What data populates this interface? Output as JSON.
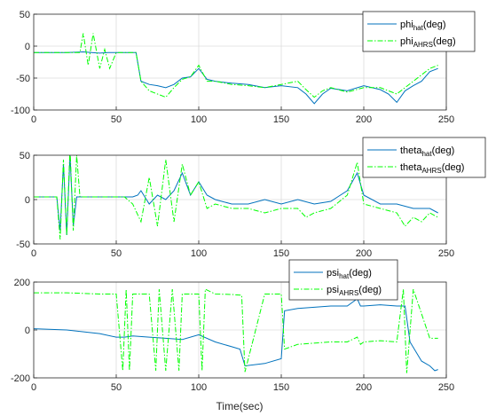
{
  "figure": {
    "xlabel": "Time(sec)"
  },
  "colors": {
    "hat": "#0072BD",
    "ahrs": "#00FF00",
    "axis": "#262626",
    "grid": "#dcdcdc"
  },
  "chart_data": [
    {
      "type": "line",
      "xlim": [
        0,
        250
      ],
      "ylim": [
        -100,
        50
      ],
      "xticks": [
        0,
        50,
        100,
        150,
        200,
        250
      ],
      "yticks": [
        -100,
        -50,
        0,
        50
      ],
      "grid": true,
      "legend_position": "top-right",
      "series": [
        {
          "name": "phi_hat(deg)",
          "label_main": "phi",
          "label_sub": "hat",
          "label_tail": "(deg)",
          "color": "#0072BD",
          "style": "solid",
          "x": [
            0,
            10,
            20,
            30,
            35,
            40,
            45,
            50,
            55,
            62,
            65,
            70,
            75,
            80,
            85,
            90,
            95,
            100,
            105,
            110,
            120,
            130,
            140,
            150,
            160,
            165,
            170,
            175,
            180,
            190,
            200,
            210,
            215,
            220,
            225,
            230,
            235,
            240,
            245
          ],
          "y": [
            -10,
            -10,
            -10,
            -9,
            -10,
            -11,
            -10,
            -10,
            -10,
            -10,
            -55,
            -60,
            -62,
            -65,
            -60,
            -50,
            -48,
            -35,
            -52,
            -55,
            -58,
            -60,
            -65,
            -62,
            -65,
            -75,
            -90,
            -75,
            -66,
            -70,
            -62,
            -68,
            -75,
            -88,
            -70,
            -62,
            -55,
            -40,
            -35
          ]
        },
        {
          "name": "phi_AHRS(deg)",
          "label_main": "phi",
          "label_sub": "AHRS",
          "label_tail": "(deg)",
          "color": "#00FF00",
          "style": "dashdot",
          "x": [
            0,
            10,
            20,
            28,
            30,
            33,
            36,
            40,
            43,
            46,
            50,
            55,
            62,
            65,
            70,
            75,
            80,
            85,
            90,
            95,
            100,
            105,
            110,
            120,
            130,
            140,
            150,
            160,
            165,
            170,
            175,
            180,
            190,
            200,
            210,
            215,
            220,
            225,
            230,
            235,
            240,
            245
          ],
          "y": [
            -10,
            -10,
            -10,
            -10,
            20,
            -30,
            20,
            -35,
            -5,
            -35,
            -10,
            -10,
            -10,
            -55,
            -70,
            -75,
            -80,
            -65,
            -52,
            -48,
            -30,
            -55,
            -55,
            -60,
            -62,
            -65,
            -60,
            -55,
            -68,
            -80,
            -70,
            -65,
            -72,
            -65,
            -65,
            -70,
            -75,
            -65,
            -55,
            -45,
            -35,
            -30
          ]
        }
      ]
    },
    {
      "type": "line",
      "xlim": [
        0,
        250
      ],
      "ylim": [
        -50,
        50
      ],
      "xticks": [
        0,
        50,
        100,
        150,
        200,
        250
      ],
      "yticks": [
        -50,
        0,
        50
      ],
      "grid": true,
      "legend_position": "top-right",
      "series": [
        {
          "name": "theta_hat(deg)",
          "label_main": "theta",
          "label_sub": "hat",
          "label_tail": "(deg)",
          "color": "#0072BD",
          "style": "solid",
          "x": [
            0,
            10,
            14,
            16,
            18,
            20,
            22,
            24,
            26,
            30,
            40,
            50,
            55,
            60,
            63,
            65,
            70,
            75,
            80,
            85,
            90,
            95,
            100,
            105,
            110,
            120,
            130,
            140,
            150,
            160,
            170,
            180,
            190,
            196,
            200,
            210,
            220,
            230,
            240,
            245
          ],
          "y": [
            3,
            3,
            3,
            -35,
            40,
            -40,
            50,
            -30,
            3,
            3,
            3,
            3,
            3,
            3,
            5,
            10,
            -5,
            5,
            0,
            10,
            30,
            5,
            20,
            5,
            0,
            -5,
            -5,
            0,
            -5,
            0,
            -5,
            -2,
            10,
            30,
            5,
            -5,
            -5,
            -10,
            -10,
            -15
          ]
        },
        {
          "name": "theta_AHRS(deg)",
          "label_main": "theta",
          "label_sub": "AHRS",
          "label_tail": "(deg)",
          "color": "#00FF00",
          "style": "dashdot",
          "x": [
            0,
            10,
            14,
            16,
            18,
            20,
            22,
            24,
            26,
            28,
            30,
            40,
            50,
            55,
            60,
            65,
            70,
            75,
            80,
            85,
            90,
            95,
            100,
            105,
            110,
            120,
            130,
            140,
            150,
            160,
            165,
            170,
            180,
            190,
            196,
            200,
            210,
            220,
            225,
            230,
            235,
            240,
            245
          ],
          "y": [
            3,
            3,
            3,
            -45,
            45,
            -40,
            58,
            -35,
            50,
            3,
            3,
            3,
            3,
            3,
            -5,
            -25,
            25,
            -30,
            45,
            -25,
            40,
            5,
            20,
            -10,
            -5,
            -10,
            -10,
            -15,
            -10,
            -10,
            -20,
            -15,
            -10,
            5,
            42,
            -5,
            -10,
            -15,
            -30,
            -20,
            -25,
            -15,
            -20
          ]
        }
      ]
    },
    {
      "type": "line",
      "xlim": [
        0,
        250
      ],
      "ylim": [
        -200,
        200
      ],
      "xticks": [
        0,
        50,
        100,
        150,
        200,
        250
      ],
      "yticks": [
        -200,
        0,
        200
      ],
      "grid": true,
      "legend_position": "top-right",
      "series": [
        {
          "name": "psi_hat(deg)",
          "label_main": "psi",
          "label_sub": "hat",
          "label_tail": "(deg)",
          "color": "#0072BD",
          "style": "solid",
          "x": [
            0,
            20,
            40,
            50,
            55,
            60,
            70,
            80,
            90,
            100,
            110,
            120,
            125,
            128,
            140,
            150,
            152,
            160,
            180,
            190,
            196,
            198,
            200,
            210,
            220,
            225,
            228,
            235,
            240,
            243,
            245
          ],
          "y": [
            5,
            0,
            -15,
            -30,
            -30,
            -25,
            -30,
            -35,
            -40,
            -20,
            -50,
            -70,
            -80,
            -150,
            -140,
            -120,
            80,
            90,
            100,
            100,
            130,
            100,
            100,
            105,
            100,
            100,
            -50,
            -130,
            -150,
            -170,
            -165
          ]
        },
        {
          "name": "psi_AHRS(deg)",
          "label_main": "psi",
          "label_sub": "AHRS",
          "label_tail": "(deg)",
          "color": "#00FF00",
          "style": "dashdot",
          "x": [
            0,
            20,
            40,
            50,
            54,
            56,
            58,
            60,
            70,
            74,
            76,
            80,
            84,
            88,
            90,
            100,
            102,
            104,
            110,
            120,
            126,
            128,
            140,
            150,
            152,
            160,
            180,
            190,
            196,
            198,
            200,
            210,
            220,
            224,
            226,
            230,
            240,
            245
          ],
          "y": [
            155,
            155,
            150,
            150,
            -170,
            170,
            -170,
            150,
            150,
            -170,
            170,
            -170,
            170,
            -170,
            150,
            150,
            -170,
            170,
            150,
            148,
            145,
            -175,
            150,
            150,
            -80,
            -60,
            -50,
            -50,
            -30,
            -60,
            -50,
            -45,
            -50,
            170,
            -180,
            170,
            -35,
            -35
          ]
        }
      ]
    }
  ]
}
